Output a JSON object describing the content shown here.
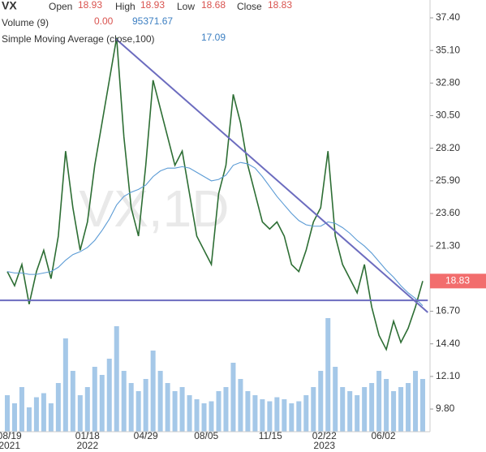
{
  "chart_data": {
    "type": "line",
    "symbol": "VX",
    "watermark": "VX,1D",
    "legend": {
      "open_label": "Open",
      "open": "18.93",
      "high_label": "High",
      "high": "18.93",
      "low_label": "Low",
      "low": "18.68",
      "close_label": "Close",
      "close": "18.83",
      "volume_label": "Volume (9)",
      "volume_a": "0.00",
      "volume_b": "95371.67",
      "sma_label": "Simple Moving Average (close,100)",
      "sma_value": "17.09"
    },
    "last_price": {
      "value": 18.83,
      "label": "18.83",
      "color": "#f26d6d"
    },
    "x": [
      0,
      1,
      2,
      3,
      4,
      5,
      6,
      7,
      8,
      9,
      10,
      11,
      12,
      13,
      14,
      15,
      16,
      17,
      18,
      19,
      20,
      21,
      22,
      23,
      24,
      25,
      26,
      27,
      28,
      29,
      30,
      31,
      32,
      33,
      34,
      35,
      36,
      37,
      38,
      39,
      40,
      41,
      42,
      43,
      44,
      45,
      46,
      47,
      48,
      49,
      50,
      51,
      52,
      53,
      54,
      55,
      56,
      57
    ],
    "series": [
      {
        "name": "Close",
        "color": "#2d6e34",
        "values": [
          19.5,
          18.5,
          20,
          17.2,
          19.5,
          21,
          19,
          22,
          28,
          24,
          21,
          23,
          27,
          30,
          33,
          36,
          29,
          24,
          22,
          27,
          33,
          31,
          29,
          27,
          28,
          25,
          22,
          21,
          20,
          25,
          27,
          32,
          30,
          27,
          25,
          23,
          22.5,
          23,
          22,
          20,
          19.5,
          21,
          23,
          24,
          28,
          22,
          20,
          19,
          18,
          20,
          17,
          15,
          14,
          16,
          14.5,
          15.5,
          17,
          18.83
        ]
      },
      {
        "name": "Simple Moving Average (close,100)",
        "color": "#5b9bd5",
        "values": [
          19.5,
          19.4,
          19.4,
          19.3,
          19.3,
          19.4,
          19.5,
          19.8,
          20.3,
          20.7,
          20.9,
          21.2,
          21.7,
          22.4,
          23.2,
          24.2,
          24.8,
          25.1,
          25.3,
          25.6,
          26.2,
          26.6,
          26.8,
          26.8,
          26.9,
          26.8,
          26.5,
          26.2,
          25.9,
          26,
          26.3,
          27,
          27.2,
          27.1,
          26.8,
          26.2,
          25.5,
          24.8,
          24.2,
          23.6,
          23.1,
          22.8,
          22.7,
          22.7,
          23,
          22.9,
          22.6,
          22.2,
          21.7,
          21.3,
          20.8,
          20.2,
          19.6,
          19.1,
          18.5,
          18,
          17.6,
          17.09
        ]
      }
    ],
    "volume": {
      "color": "#5b9bd5",
      "ylim": [
        0,
        300000
      ],
      "values": [
        90000,
        70000,
        110000,
        60000,
        85000,
        95000,
        70000,
        120000,
        230000,
        150000,
        90000,
        110000,
        160000,
        140000,
        180000,
        260000,
        150000,
        120000,
        100000,
        130000,
        200000,
        150000,
        120000,
        100000,
        110000,
        90000,
        80000,
        70000,
        75000,
        100000,
        110000,
        170000,
        130000,
        100000,
        90000,
        80000,
        75000,
        85000,
        80000,
        70000,
        75000,
        90000,
        110000,
        150000,
        280000,
        160000,
        110000,
        100000,
        90000,
        110000,
        120000,
        150000,
        130000,
        100000,
        110000,
        120000,
        150000,
        130000
      ]
    },
    "trendlines": [
      {
        "color": "#6c6cbf",
        "x": [
          14.9,
          57.7
        ],
        "y": [
          35.91,
          16.62
        ]
      },
      {
        "color": "#6c6cbf",
        "x": [
          -1,
          57.7
        ],
        "y": [
          17.47,
          17.47
        ]
      }
    ],
    "xlim": [
      -1,
      58
    ],
    "ylim": [
      8.2,
      38.66
    ],
    "yticks": [
      {
        "value": 37.4,
        "label": "37.40"
      },
      {
        "value": 35.1,
        "label": "35.10"
      },
      {
        "value": 32.8,
        "label": "32.80"
      },
      {
        "value": 30.5,
        "label": "30.50"
      },
      {
        "value": 28.2,
        "label": "28.20"
      },
      {
        "value": 25.9,
        "label": "25.90"
      },
      {
        "value": 23.6,
        "label": "23.60"
      },
      {
        "value": 21.3,
        "label": "21.30"
      },
      {
        "value": 16.7,
        "label": "16.70"
      },
      {
        "value": 14.4,
        "label": "14.40"
      },
      {
        "value": 12.1,
        "label": "12.10"
      },
      {
        "value": 9.8,
        "label": "9.80"
      }
    ],
    "xticks": [
      {
        "value": 0.3,
        "label": "08/19",
        "year": "2021"
      },
      {
        "value": 11,
        "label": "01/18",
        "year": "2022"
      },
      {
        "value": 19,
        "label": "04/29"
      },
      {
        "value": 27.3,
        "label": "08/05"
      },
      {
        "value": 36.1,
        "label": "11/15"
      },
      {
        "value": 43.5,
        "label": "02/22",
        "year": "2023"
      },
      {
        "value": 51.6,
        "label": "06/02"
      }
    ]
  }
}
